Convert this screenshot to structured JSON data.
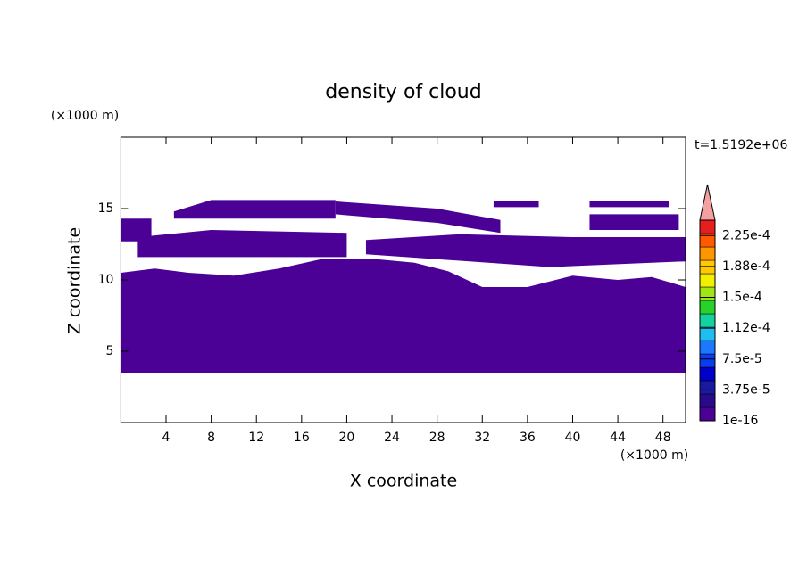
{
  "chart_data": {
    "type": "contour",
    "title": "density of cloud",
    "xlabel": "X coordinate",
    "ylabel": "Z coordinate",
    "xunit": "(×1000 m)",
    "yunit": "(×1000 m)",
    "annotation": "t=1.5192e+06",
    "xlim": [
      0,
      50
    ],
    "ylim": [
      0,
      20
    ],
    "xticks": [
      4,
      8,
      12,
      16,
      20,
      24,
      28,
      32,
      36,
      40,
      44,
      48
    ],
    "yticks": [
      5,
      10,
      15
    ],
    "regions": [
      {
        "color": "#4b0096",
        "x": [
          0,
          50,
          50,
          47,
          44,
          40,
          36,
          32,
          29,
          26,
          22,
          18,
          14,
          10,
          6,
          3,
          0
        ],
        "y": [
          3.5,
          3.5,
          9.5,
          10.2,
          10,
          10.3,
          9.5,
          9.5,
          10.6,
          11.2,
          11.5,
          11.5,
          10.8,
          10.3,
          10.5,
          10.8,
          10.5
        ]
      },
      {
        "color": "#4b0096",
        "x": [
          1.5,
          20,
          20,
          14,
          8,
          1.5
        ],
        "y": [
          11.6,
          11.6,
          13.3,
          13.4,
          13.5,
          13.0
        ]
      },
      {
        "color": "#4b0096",
        "x": [
          4.7,
          19,
          19,
          8,
          4.7
        ],
        "y": [
          14.3,
          14.3,
          15.6,
          15.6,
          14.8
        ]
      },
      {
        "color": "#4b0096",
        "x": [
          19,
          28,
          33.6,
          33.6,
          28,
          19
        ],
        "y": [
          14.6,
          14.0,
          13.3,
          14.2,
          15.0,
          15.5
        ]
      },
      {
        "color": "#4b0096",
        "x": [
          21.7,
          38,
          50,
          50,
          40,
          30,
          21.7
        ],
        "y": [
          11.8,
          10.9,
          11.3,
          13.0,
          13.0,
          13.2,
          12.8
        ]
      },
      {
        "color": "#4b0096",
        "x": [
          33,
          37,
          37,
          33
        ],
        "y": [
          15.1,
          15.1,
          15.5,
          15.5
        ]
      },
      {
        "color": "#4b0096",
        "x": [
          41.5,
          48.5,
          48.5,
          41.5
        ],
        "y": [
          15.1,
          15.1,
          15.5,
          15.5
        ]
      },
      {
        "color": "#4b0096",
        "x": [
          41.5,
          49.4,
          49.4,
          41.5
        ],
        "y": [
          13.5,
          13.5,
          14.6,
          14.6
        ]
      },
      {
        "color": "#4b0096",
        "x": [
          0,
          2.7,
          2.7,
          0
        ],
        "y": [
          12.7,
          12.7,
          14.3,
          14.3
        ]
      }
    ],
    "colorbar": {
      "clim": [
        1e-16,
        0.00024375
      ],
      "colors": [
        "#4b0096",
        "#2a0a8c",
        "#1a1aa0",
        "#0000c8",
        "#0a3cf0",
        "#1e78ff",
        "#1ebef0",
        "#14d2a0",
        "#28d228",
        "#a0e614",
        "#f0f000",
        "#ffc800",
        "#ff9600",
        "#ff5a00",
        "#e61e1e"
      ],
      "extend_color": "#f4a0a0",
      "ticks": [
        1e-16,
        {
          "value": 3.75e-05,
          "label": "3.75e-5"
        },
        {
          "value": 7.5e-05,
          "label": "7.5e-5"
        },
        {
          "value": 0.0001125,
          "label": "1.12e-4"
        },
        {
          "value": 0.00015,
          "label": "1.5e-4"
        },
        {
          "value": 0.0001875,
          "label": "1.88e-4"
        },
        {
          "value": 0.000225,
          "label": "2.25e-4"
        }
      ]
    }
  }
}
